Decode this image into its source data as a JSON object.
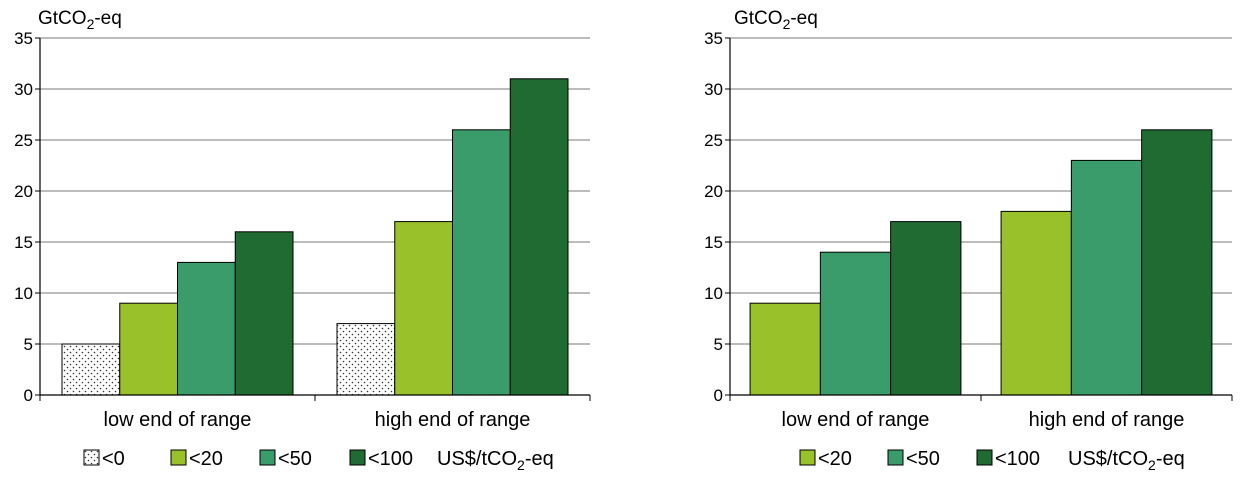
{
  "chart_data": [
    {
      "type": "bar",
      "ylabel_main": "GtCO",
      "ylabel_sub": "2",
      "ylabel_tail": "-eq",
      "ylim": [
        0,
        35
      ],
      "yticks": [
        0,
        5,
        10,
        15,
        20,
        25,
        30,
        35
      ],
      "grid": true,
      "categories": [
        "low end of range",
        "high end of range"
      ],
      "series": [
        {
          "name": "<0",
          "values": [
            5,
            7
          ],
          "color": "#ffffff",
          "pattern": "dots"
        },
        {
          "name": "<20",
          "values": [
            9,
            17
          ],
          "color": "#99c12a"
        },
        {
          "name": "<50",
          "values": [
            13,
            26
          ],
          "color": "#3a9c6a"
        },
        {
          "name": "<100",
          "values": [
            16,
            31
          ],
          "color": "#1f6b31"
        }
      ],
      "legend_suffix_main": "US$/tCO",
      "legend_suffix_sub": "2",
      "legend_suffix_tail": "-eq",
      "legend_position": "bottom"
    },
    {
      "type": "bar",
      "ylabel_main": "GtCO",
      "ylabel_sub": "2",
      "ylabel_tail": "-eq",
      "ylim": [
        0,
        35
      ],
      "yticks": [
        0,
        5,
        10,
        15,
        20,
        25,
        30,
        35
      ],
      "grid": true,
      "categories": [
        "low end of range",
        "high end of range"
      ],
      "series": [
        {
          "name": "<20",
          "values": [
            9,
            18
          ],
          "color": "#99c12a"
        },
        {
          "name": "<50",
          "values": [
            14,
            23
          ],
          "color": "#3a9c6a"
        },
        {
          "name": "<100",
          "values": [
            17,
            26
          ],
          "color": "#1f6b31"
        }
      ],
      "legend_suffix_main": "US$/tCO",
      "legend_suffix_sub": "2",
      "legend_suffix_tail": "-eq",
      "legend_position": "bottom"
    }
  ]
}
